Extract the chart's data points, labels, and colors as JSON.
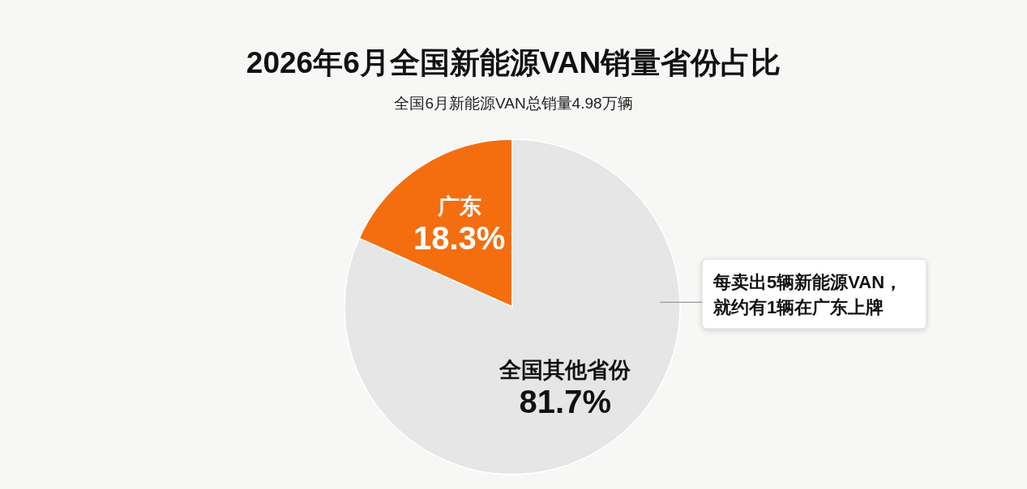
{
  "chart_data": {
    "type": "pie",
    "title": "2026年6月全国新能源VAN销量省份占比",
    "subtitle": "全国6月新能源VAN总销量4.98万辆",
    "categories": [
      "广东",
      "全国其他省份"
    ],
    "values": [
      18.3,
      81.7
    ],
    "colors": [
      "#f46e0f",
      "#e6e6e6"
    ],
    "value_labels": [
      "18.3%",
      "81.7%"
    ],
    "annotations": [
      "每卖出5辆新能源VAN，就约有1辆在广东上牌"
    ]
  }
}
